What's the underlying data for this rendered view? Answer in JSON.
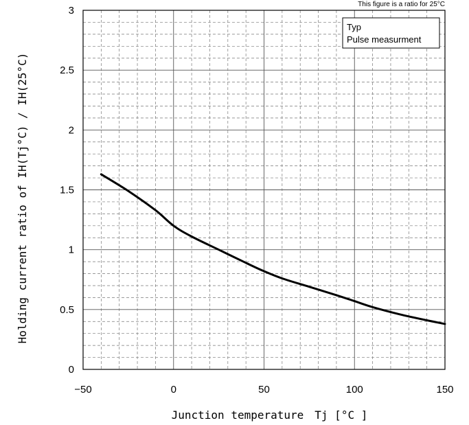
{
  "chart_data": {
    "type": "line",
    "note": "This figure is a ratio for 25°C",
    "xlabel": "Junction temperature　Tj [°C ]",
    "ylabel": "Holding current ratio of IH(Tj°C) / IH(25°C)",
    "xlim": [
      -50,
      150
    ],
    "ylim": [
      0,
      3
    ],
    "x_ticks": [
      "−50",
      "0",
      "50",
      "100",
      "150"
    ],
    "y_ticks": [
      "0",
      "0.5",
      "1",
      "1.5",
      "2",
      "2.5",
      "3"
    ],
    "grid": true,
    "legend": {
      "position": "top-right",
      "lines": [
        "Typ",
        "Pulse measurment"
      ]
    },
    "series": [
      {
        "x": [
          -40,
          -25,
          -10,
          0,
          10,
          25,
          40,
          50,
          60,
          75,
          90,
          100,
          110,
          125,
          140,
          150
        ],
        "y": [
          1.63,
          1.49,
          1.33,
          1.2,
          1.11,
          1.0,
          0.89,
          0.82,
          0.76,
          0.69,
          0.62,
          0.57,
          0.52,
          0.46,
          0.41,
          0.38
        ]
      }
    ]
  }
}
